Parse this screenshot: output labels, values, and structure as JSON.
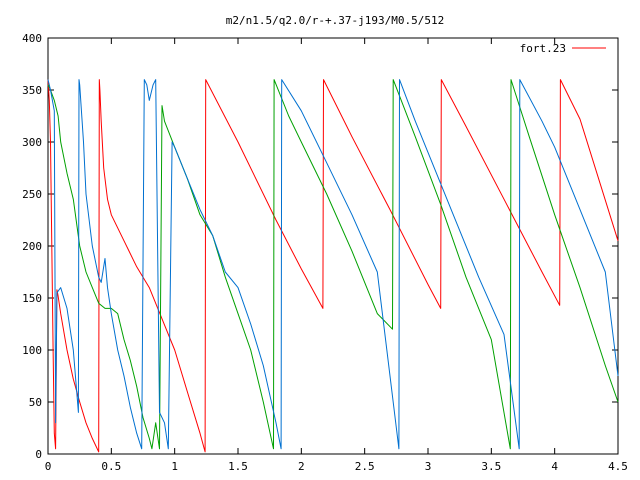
{
  "chart_data": {
    "type": "line",
    "title": "m2/n1.5/q2.0/r-+.37-j193/M0.5/512",
    "xlabel": "",
    "ylabel": "",
    "xlim": [
      0,
      4.5
    ],
    "ylim": [
      0,
      400
    ],
    "x_ticks": [
      0,
      0.5,
      1,
      1.5,
      2,
      2.5,
      3,
      3.5,
      4,
      4.5
    ],
    "x_tick_labels": [
      "0",
      "0.5",
      "1",
      "1.5",
      "2",
      "2.5",
      "3",
      "3.5",
      "4",
      "4.5"
    ],
    "y_ticks": [
      0,
      50,
      100,
      150,
      200,
      250,
      300,
      350,
      400
    ],
    "y_tick_labels": [
      "0",
      "50",
      "100",
      "150",
      "200",
      "250",
      "300",
      "350",
      "400"
    ],
    "grid": false,
    "legend": {
      "position": "top-right",
      "label": "fort.23",
      "color": "#ff0000"
    },
    "series": [
      {
        "color": "#ff0000",
        "x": [
          0,
          0.01,
          0.02,
          0.03,
          0.04,
          0.05,
          0.06,
          0.07,
          0.08,
          0.1,
          0.15,
          0.2,
          0.25,
          0.3,
          0.35,
          0.4,
          0.405,
          0.41,
          0.42,
          0.44,
          0.47,
          0.5,
          0.6,
          0.7,
          0.8,
          0.9,
          1.0,
          1.1,
          1.2,
          1.24,
          1.245,
          1.5,
          1.8,
          2.0,
          2.17,
          2.175,
          2.4,
          2.7,
          3.0,
          3.1,
          3.105,
          3.3,
          3.6,
          3.9,
          4.04,
          4.045,
          4.2,
          4.5
        ],
        "y": [
          360,
          340,
          300,
          200,
          100,
          20,
          5,
          158,
          152,
          135,
          100,
          72,
          50,
          30,
          15,
          2,
          360,
          350,
          320,
          275,
          245,
          230,
          205,
          180,
          160,
          130,
          100,
          60,
          20,
          2,
          360,
          300,
          225,
          178,
          140,
          360,
          305,
          235,
          163,
          140,
          360,
          315,
          245,
          175,
          143,
          360,
          322,
          205
        ]
      },
      {
        "color": "#00a000",
        "x": [
          0,
          0.02,
          0.05,
          0.08,
          0.1,
          0.15,
          0.2,
          0.25,
          0.3,
          0.35,
          0.4,
          0.45,
          0.5,
          0.55,
          0.6,
          0.65,
          0.7,
          0.75,
          0.8,
          0.82,
          0.85,
          0.88,
          0.9,
          0.92,
          1.0,
          1.1,
          1.2,
          1.3,
          1.4,
          1.5,
          1.6,
          1.7,
          1.78,
          1.785,
          1.9,
          2.0,
          2.2,
          2.4,
          2.6,
          2.72,
          2.725,
          2.9,
          3.1,
          3.3,
          3.5,
          3.65,
          3.655,
          3.8,
          4.0,
          4.2,
          4.4,
          4.5
        ],
        "y": [
          355,
          350,
          340,
          325,
          300,
          270,
          245,
          200,
          175,
          160,
          145,
          140,
          140,
          135,
          110,
          90,
          65,
          35,
          15,
          5,
          30,
          5,
          335,
          320,
          295,
          265,
          230,
          210,
          170,
          135,
          100,
          50,
          5,
          360,
          325,
          300,
          250,
          195,
          135,
          120,
          360,
          305,
          240,
          170,
          110,
          5,
          360,
          305,
          230,
          160,
          85,
          50
        ]
      },
      {
        "color": "#0070d0",
        "x": [
          0,
          0.02,
          0.05,
          0.06,
          0.07,
          0.1,
          0.15,
          0.2,
          0.24,
          0.245,
          0.25,
          0.28,
          0.3,
          0.35,
          0.4,
          0.42,
          0.45,
          0.47,
          0.5,
          0.55,
          0.6,
          0.65,
          0.7,
          0.74,
          0.76,
          0.78,
          0.8,
          0.83,
          0.85,
          0.88,
          0.92,
          0.95,
          0.98,
          1.0,
          1.1,
          1.2,
          1.3,
          1.4,
          1.5,
          1.6,
          1.7,
          1.8,
          1.84,
          1.845,
          2.0,
          2.2,
          2.4,
          2.6,
          2.77,
          2.775,
          2.9,
          3.0,
          3.2,
          3.4,
          3.6,
          3.72,
          3.725,
          3.9,
          4.0,
          4.2,
          4.4,
          4.5
        ],
        "y": [
          360,
          350,
          330,
          30,
          155,
          160,
          140,
          100,
          40,
          360,
          355,
          300,
          250,
          200,
          170,
          165,
          188,
          160,
          135,
          100,
          75,
          45,
          20,
          5,
          360,
          355,
          340,
          355,
          360,
          40,
          30,
          5,
          300,
          295,
          265,
          235,
          210,
          175,
          160,
          125,
          85,
          30,
          5,
          360,
          330,
          280,
          230,
          175,
          5,
          360,
          320,
          290,
          230,
          170,
          115,
          5,
          360,
          320,
          295,
          235,
          175,
          75
        ]
      }
    ]
  }
}
